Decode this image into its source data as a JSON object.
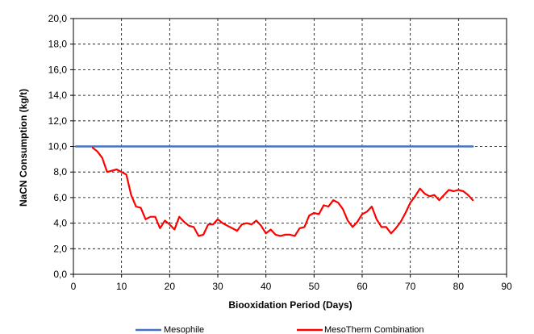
{
  "chart_data": {
    "type": "line",
    "title": "",
    "xlabel": "Biooxidation Period (Days)",
    "ylabel": "NaCN Consumption (kg/t)",
    "xlim": [
      0,
      90
    ],
    "ylim": [
      0,
      20
    ],
    "x_ticks": [
      "0",
      "10",
      "20",
      "30",
      "40",
      "50",
      "60",
      "70",
      "80",
      "90"
    ],
    "y_ticks": [
      "0,0",
      "2,0",
      "4,0",
      "6,0",
      "8,0",
      "10,0",
      "12,0",
      "14,0",
      "16,0",
      "18,0",
      "20,0"
    ],
    "grid": true,
    "legend_position": "bottom",
    "series": [
      {
        "name": "Mesophile",
        "color": "#4472C4",
        "x": [
          0.5,
          83
        ],
        "y": [
          10.0,
          10.0
        ]
      },
      {
        "name": "MesoTherm Combination",
        "color": "#FF0000",
        "x": [
          4,
          5,
          6,
          7,
          8,
          9,
          10,
          11,
          12,
          13,
          14,
          15,
          16,
          17,
          18,
          19,
          20,
          21,
          22,
          23,
          24,
          25,
          26,
          27,
          28,
          29,
          30,
          31,
          32,
          33,
          34,
          35,
          36,
          37,
          38,
          39,
          40,
          41,
          42,
          43,
          44,
          45,
          46,
          47,
          48,
          49,
          50,
          51,
          52,
          53,
          54,
          55,
          56,
          57,
          58,
          59,
          60,
          61,
          62,
          63,
          64,
          65,
          66,
          67,
          68,
          69,
          70,
          71,
          72,
          73,
          74,
          75,
          76,
          77,
          78,
          79,
          80,
          81,
          82,
          83
        ],
        "y": [
          9.9,
          9.6,
          9.1,
          8.0,
          8.1,
          8.2,
          8.0,
          7.8,
          6.2,
          5.3,
          5.2,
          4.3,
          4.5,
          4.5,
          3.6,
          4.2,
          3.9,
          3.5,
          4.5,
          4.1,
          3.8,
          3.7,
          3.0,
          3.1,
          3.9,
          3.9,
          4.3,
          4.0,
          3.8,
          3.6,
          3.4,
          3.9,
          4.0,
          3.9,
          4.2,
          3.8,
          3.2,
          3.5,
          3.1,
          3.0,
          3.1,
          3.1,
          3.0,
          3.6,
          3.7,
          4.6,
          4.8,
          4.7,
          5.4,
          5.3,
          5.8,
          5.6,
          5.1,
          4.2,
          3.7,
          4.1,
          4.7,
          4.9,
          5.3,
          4.3,
          3.7,
          3.7,
          3.2,
          3.6,
          4.1,
          4.8,
          5.6,
          6.1,
          6.7,
          6.3,
          6.1,
          6.2,
          5.8,
          6.2,
          6.6,
          6.5,
          6.6,
          6.5,
          6.2,
          5.8
        ]
      }
    ]
  }
}
